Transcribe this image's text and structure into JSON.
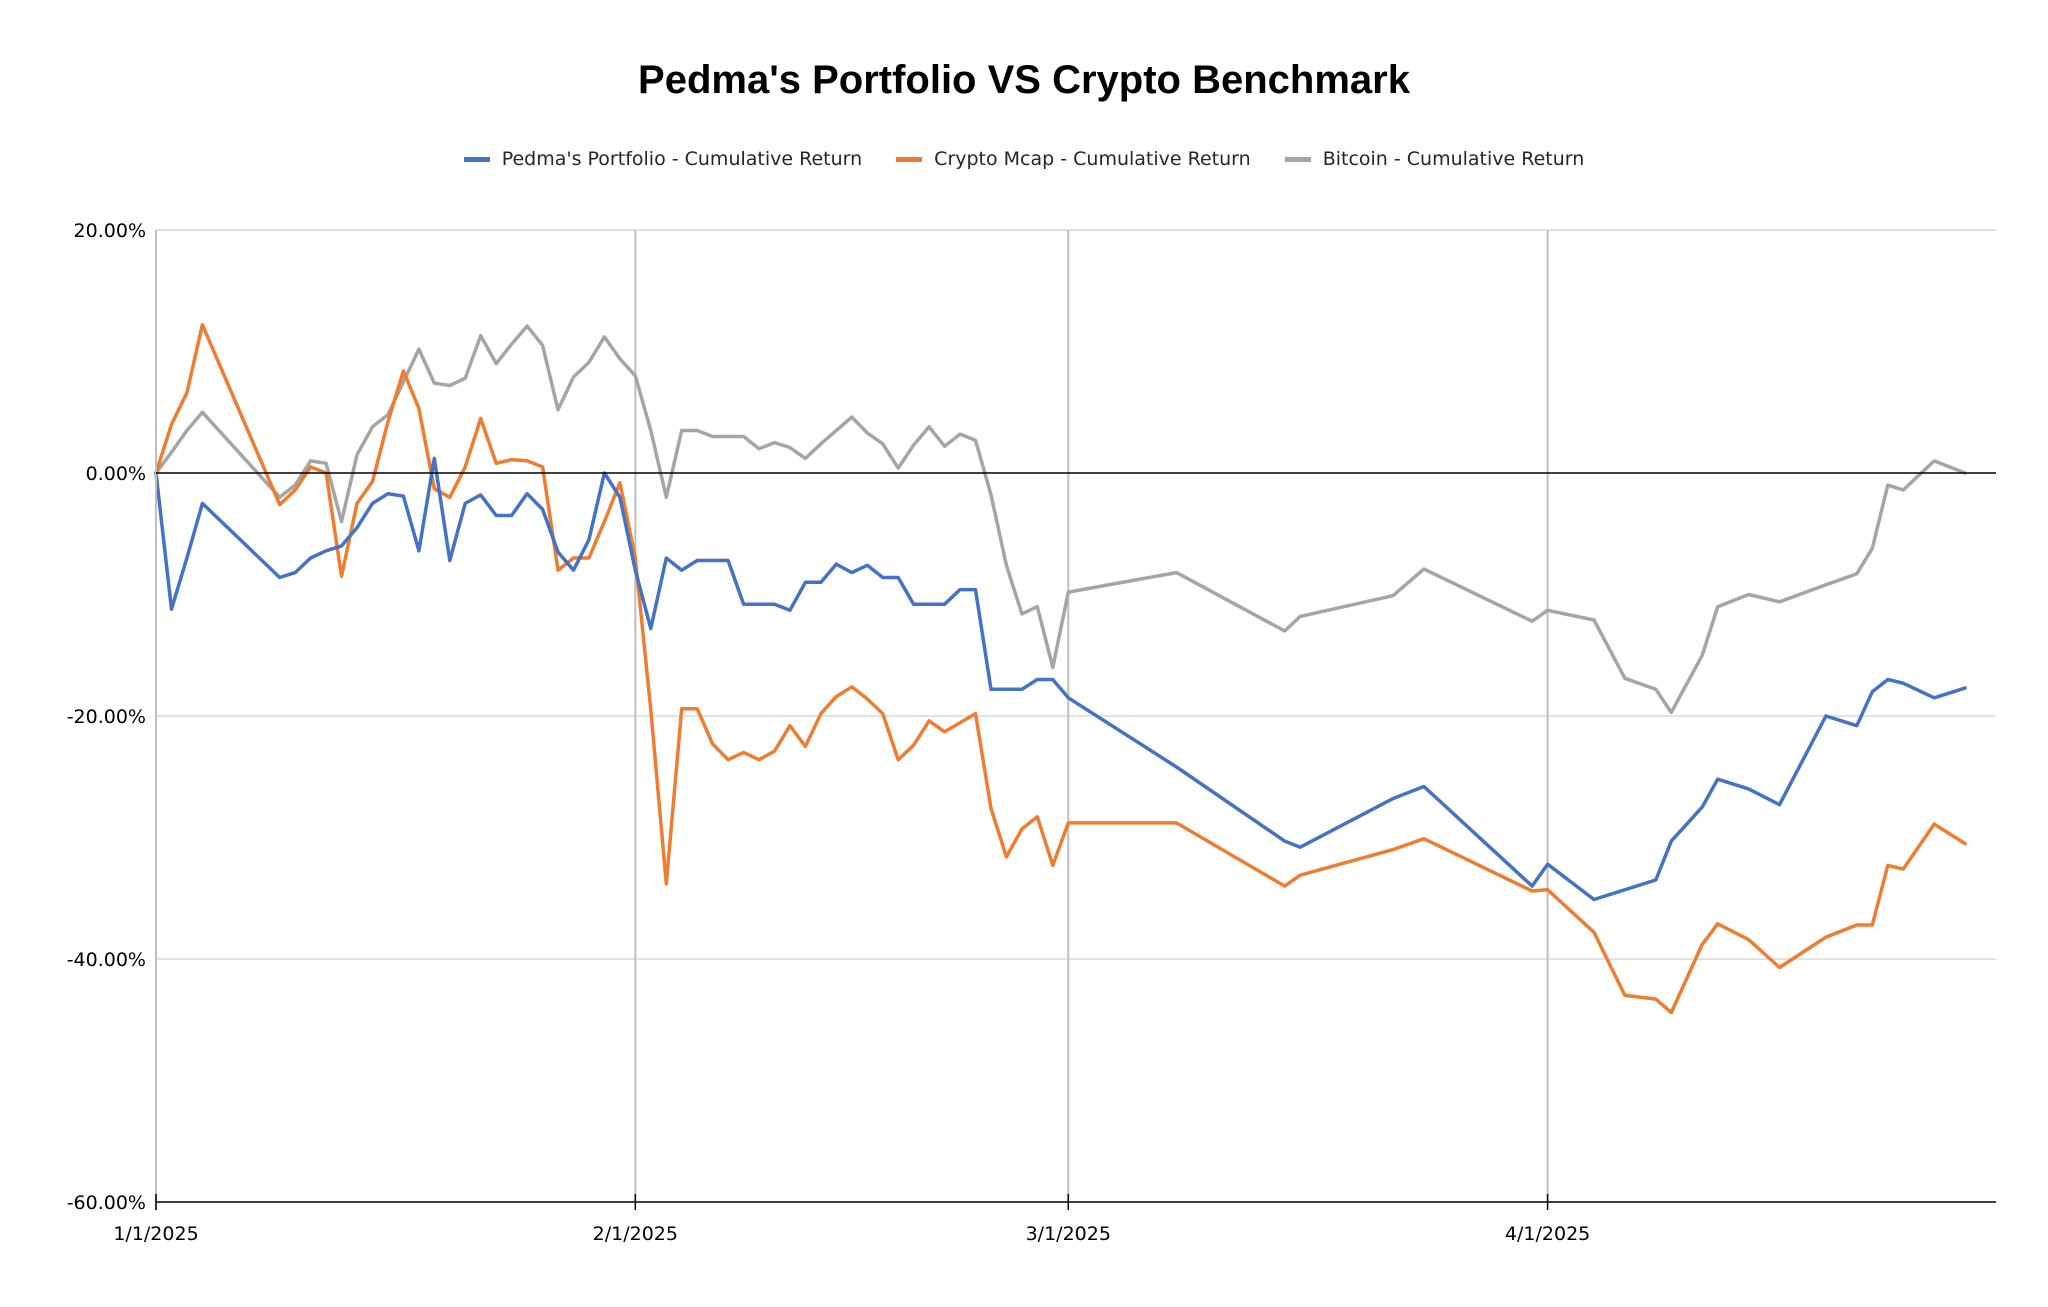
{
  "chart_data": {
    "type": "line",
    "title": "Pedma's Portfolio VS Crypto Benchmark",
    "xlabel": "",
    "ylabel": "",
    "x_range": [
      "1/1/2025",
      "4/30/2025"
    ],
    "x_ticks": [
      {
        "label": "1/1/2025",
        "day": 0
      },
      {
        "label": "2/1/2025",
        "day": 31
      },
      {
        "label": "3/1/2025",
        "day": 59
      },
      {
        "label": "4/1/2025",
        "day": 90
      }
    ],
    "ylim": [
      -60,
      20
    ],
    "y_ticks": [
      {
        "label": "20.00%",
        "value": 20
      },
      {
        "label": "0.00%",
        "value": 0
      },
      {
        "label": "-20.00%",
        "value": -20
      },
      {
        "label": "-40.00%",
        "value": -40
      },
      {
        "label": "-60.00%",
        "value": -60
      }
    ],
    "grid": true,
    "legend_position": "top",
    "series": [
      {
        "name": "Pedma's Portfolio - Cumulative Return",
        "color": "#4472C4",
        "points": [
          [
            0,
            0
          ],
          [
            1,
            -11.2
          ],
          [
            2,
            -7
          ],
          [
            3,
            -2.5
          ],
          [
            8,
            -8.6
          ],
          [
            9,
            -8.2
          ],
          [
            10,
            -7
          ],
          [
            11,
            -6.4
          ],
          [
            12,
            -6
          ],
          [
            13,
            -4.5
          ],
          [
            14,
            -2.5
          ],
          [
            15,
            -1.7
          ],
          [
            16,
            -1.9
          ],
          [
            17,
            -6.4
          ],
          [
            18,
            1.2
          ],
          [
            19,
            -7.2
          ],
          [
            20,
            -2.5
          ],
          [
            21,
            -1.8
          ],
          [
            22,
            -3.5
          ],
          [
            23,
            -3.5
          ],
          [
            24,
            -1.7
          ],
          [
            25,
            -3
          ],
          [
            26,
            -6.5
          ],
          [
            27,
            -8
          ],
          [
            28,
            -5.5
          ],
          [
            29,
            0
          ],
          [
            30,
            -2
          ],
          [
            31,
            -8
          ],
          [
            32,
            -12.8
          ],
          [
            33,
            -7
          ],
          [
            34,
            -8
          ],
          [
            35,
            -7.2
          ],
          [
            37,
            -7.2
          ],
          [
            38,
            -10.8
          ],
          [
            40,
            -10.8
          ],
          [
            41,
            -11.3
          ],
          [
            42,
            -9
          ],
          [
            43,
            -9
          ],
          [
            44,
            -7.5
          ],
          [
            45,
            -8.2
          ],
          [
            46,
            -7.6
          ],
          [
            47,
            -8.6
          ],
          [
            48,
            -8.6
          ],
          [
            49,
            -10.8
          ],
          [
            51,
            -10.8
          ],
          [
            52,
            -9.6
          ],
          [
            53,
            -9.6
          ],
          [
            54,
            -17.8
          ],
          [
            56,
            -17.8
          ],
          [
            57,
            -17
          ],
          [
            58,
            -17
          ],
          [
            59,
            -18.5
          ],
          [
            66,
            -24.2
          ],
          [
            73,
            -30.3
          ],
          [
            74,
            -30.8
          ],
          [
            80,
            -26.8
          ],
          [
            82,
            -25.8
          ],
          [
            89,
            -34
          ],
          [
            90,
            -32.2
          ],
          [
            93,
            -35.1
          ],
          [
            97,
            -33.5
          ],
          [
            98,
            -30.3
          ],
          [
            100,
            -27.5
          ],
          [
            101,
            -25.2
          ],
          [
            103,
            -26
          ],
          [
            105,
            -27.3
          ],
          [
            108,
            -20
          ],
          [
            110,
            -20.8
          ],
          [
            111,
            -18
          ],
          [
            112,
            -17
          ],
          [
            113,
            -17.3
          ],
          [
            115,
            -18.5
          ],
          [
            117,
            -17.7
          ]
        ]
      },
      {
        "name": "Crypto Mcap - Cumulative Return",
        "color": "#ED7D31",
        "points": [
          [
            0,
            0
          ],
          [
            1,
            4
          ],
          [
            2,
            6.6
          ],
          [
            3,
            12.2
          ],
          [
            8,
            -2.6
          ],
          [
            9,
            -1.4
          ],
          [
            10,
            0.5
          ],
          [
            11,
            0
          ],
          [
            12,
            -8.5
          ],
          [
            13,
            -2.5
          ],
          [
            14,
            -0.7
          ],
          [
            15,
            4.2
          ],
          [
            16,
            8.4
          ],
          [
            17,
            5.3
          ],
          [
            18,
            -1.3
          ],
          [
            19,
            -2
          ],
          [
            20,
            0.5
          ],
          [
            21,
            4.5
          ],
          [
            22,
            0.8
          ],
          [
            23,
            1.1
          ],
          [
            24,
            1
          ],
          [
            25,
            0.5
          ],
          [
            26,
            -8
          ],
          [
            27,
            -7
          ],
          [
            28,
            -7
          ],
          [
            29,
            -4
          ],
          [
            30,
            -0.8
          ],
          [
            31,
            -7
          ],
          [
            32,
            -19.5
          ],
          [
            33,
            -33.8
          ],
          [
            34,
            -19.4
          ],
          [
            35,
            -19.4
          ],
          [
            36,
            -22.3
          ],
          [
            37,
            -23.6
          ],
          [
            38,
            -23
          ],
          [
            39,
            -23.6
          ],
          [
            40,
            -22.9
          ],
          [
            41,
            -20.8
          ],
          [
            42,
            -22.5
          ],
          [
            43,
            -19.8
          ],
          [
            44,
            -18.4
          ],
          [
            45,
            -17.6
          ],
          [
            46,
            -18.6
          ],
          [
            47,
            -19.8
          ],
          [
            48,
            -23.6
          ],
          [
            49,
            -22.4
          ],
          [
            50,
            -20.4
          ],
          [
            51,
            -21.3
          ],
          [
            53,
            -19.8
          ],
          [
            54,
            -27.6
          ],
          [
            55,
            -31.6
          ],
          [
            56,
            -29.3
          ],
          [
            57,
            -28.3
          ],
          [
            58,
            -32.3
          ],
          [
            59,
            -28.8
          ],
          [
            66,
            -28.8
          ],
          [
            73,
            -34
          ],
          [
            74,
            -33.1
          ],
          [
            80,
            -31
          ],
          [
            82,
            -30.1
          ],
          [
            89,
            -34.4
          ],
          [
            90,
            -34.3
          ],
          [
            93,
            -37.8
          ],
          [
            95,
            -43
          ],
          [
            97,
            -43.3
          ],
          [
            98,
            -44.4
          ],
          [
            100,
            -38.8
          ],
          [
            101,
            -37.1
          ],
          [
            103,
            -38.4
          ],
          [
            105,
            -40.7
          ],
          [
            108,
            -38.2
          ],
          [
            110,
            -37.2
          ],
          [
            111,
            -37.2
          ],
          [
            112,
            -32.3
          ],
          [
            113,
            -32.6
          ],
          [
            115,
            -28.9
          ],
          [
            117,
            -30.5
          ]
        ]
      },
      {
        "name": "Bitcoin - Cumulative Return",
        "color": "#A5A5A5",
        "points": [
          [
            0,
            0
          ],
          [
            1,
            1.7
          ],
          [
            2,
            3.5
          ],
          [
            3,
            5
          ],
          [
            8,
            -2
          ],
          [
            9,
            -1
          ],
          [
            10,
            1
          ],
          [
            11,
            0.8
          ],
          [
            12,
            -4
          ],
          [
            13,
            1.5
          ],
          [
            14,
            3.8
          ],
          [
            15,
            4.8
          ],
          [
            16,
            7.5
          ],
          [
            17,
            10.2
          ],
          [
            18,
            7.4
          ],
          [
            19,
            7.2
          ],
          [
            20,
            7.8
          ],
          [
            21,
            11.3
          ],
          [
            22,
            9
          ],
          [
            23,
            10.6
          ],
          [
            24,
            12.1
          ],
          [
            25,
            10.5
          ],
          [
            26,
            5.2
          ],
          [
            27,
            7.9
          ],
          [
            28,
            9.1
          ],
          [
            29,
            11.2
          ],
          [
            30,
            9.4
          ],
          [
            31,
            8
          ],
          [
            32,
            3.5
          ],
          [
            33,
            -2
          ],
          [
            34,
            3.5
          ],
          [
            35,
            3.5
          ],
          [
            36,
            3
          ],
          [
            38,
            3
          ],
          [
            39,
            2
          ],
          [
            40,
            2.5
          ],
          [
            41,
            2.1
          ],
          [
            42,
            1.2
          ],
          [
            43,
            2.4
          ],
          [
            44,
            3.5
          ],
          [
            45,
            4.6
          ],
          [
            46,
            3.3
          ],
          [
            47,
            2.4
          ],
          [
            48,
            0.4
          ],
          [
            49,
            2.3
          ],
          [
            50,
            3.8
          ],
          [
            51,
            2.2
          ],
          [
            52,
            3.2
          ],
          [
            53,
            2.7
          ],
          [
            54,
            -1.8
          ],
          [
            55,
            -7.6
          ],
          [
            56,
            -11.6
          ],
          [
            57,
            -11
          ],
          [
            58,
            -16
          ],
          [
            59,
            -9.8
          ],
          [
            66,
            -8.2
          ],
          [
            73,
            -13
          ],
          [
            74,
            -11.8
          ],
          [
            80,
            -10.1
          ],
          [
            82,
            -7.9
          ],
          [
            89,
            -12.2
          ],
          [
            90,
            -11.3
          ],
          [
            93,
            -12.1
          ],
          [
            95,
            -16.9
          ],
          [
            97,
            -17.8
          ],
          [
            98,
            -19.7
          ],
          [
            100,
            -15
          ],
          [
            101,
            -11
          ],
          [
            103,
            -10
          ],
          [
            105,
            -10.6
          ],
          [
            108,
            -9.2
          ],
          [
            110,
            -8.3
          ],
          [
            111,
            -6.2
          ],
          [
            112,
            -1
          ],
          [
            113,
            -1.4
          ],
          [
            115,
            1
          ],
          [
            117,
            0
          ]
        ]
      }
    ]
  }
}
